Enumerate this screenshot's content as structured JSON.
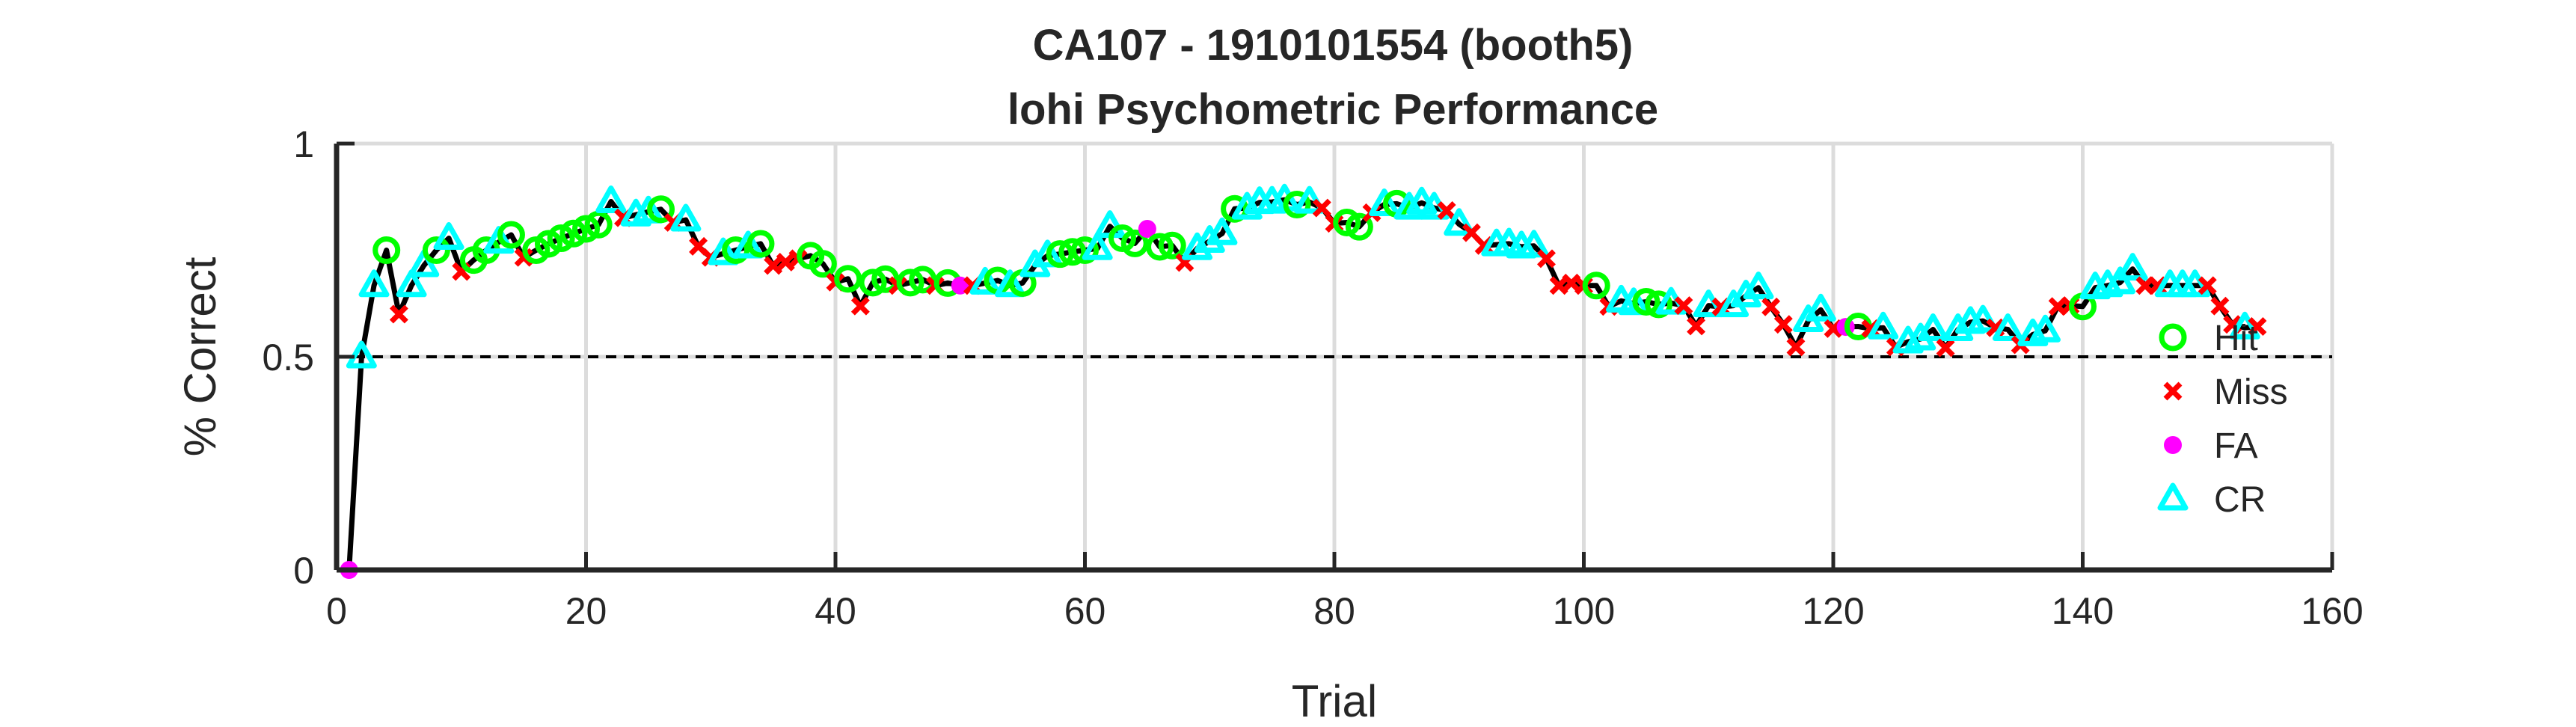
{
  "chart_data": {
    "type": "line",
    "title": "CA107 - 1910101554 (booth5)",
    "subtitle": "lohi Psychometric Performance",
    "xlabel": "Trial",
    "ylabel": "% Correct",
    "xlim": [
      0,
      160
    ],
    "ylim": [
      0,
      1
    ],
    "xticks": [
      0,
      20,
      40,
      60,
      80,
      100,
      120,
      140,
      160
    ],
    "xtick_labels": [
      "0",
      "20",
      "40",
      "60",
      "80",
      "100",
      "120",
      "140",
      "160"
    ],
    "yticks": [
      0,
      0.5,
      1
    ],
    "ytick_labels": [
      "0",
      "0.5",
      "1"
    ],
    "grid": true,
    "chance_line": 0.5,
    "legend_position": "bottom-right",
    "legend": [
      {
        "label": "Hit",
        "marker": "circle-open",
        "color": "#00ff00"
      },
      {
        "label": "Miss",
        "marker": "x",
        "color": "#ff0000"
      },
      {
        "label": "FA",
        "marker": "dot",
        "color": "#ff00ff"
      },
      {
        "label": "CR",
        "marker": "triangle-open",
        "color": "#00ffff"
      }
    ],
    "line_color": "#000000",
    "trials": [
      1,
      2,
      3,
      4,
      5,
      6,
      7,
      8,
      9,
      10,
      11,
      12,
      13,
      14,
      15,
      16,
      17,
      18,
      19,
      20,
      21,
      22,
      23,
      24,
      25,
      26,
      27,
      28,
      29,
      30,
      31,
      32,
      33,
      34,
      35,
      36,
      37,
      38,
      39,
      40,
      41,
      42,
      43,
      44,
      45,
      46,
      47,
      48,
      49,
      50,
      51,
      52,
      53,
      54,
      55,
      56,
      57,
      58,
      59,
      60,
      61,
      62,
      63,
      64,
      65,
      66,
      67,
      68,
      69,
      70,
      71,
      72,
      73,
      74,
      75,
      76,
      77,
      78,
      79,
      80,
      81,
      82,
      83,
      84,
      85,
      86,
      87,
      88,
      89,
      90,
      91,
      92,
      93,
      94,
      95,
      96,
      97,
      98,
      99,
      100,
      101,
      102,
      103,
      104,
      105,
      106,
      107,
      108,
      109,
      110,
      111,
      112,
      113,
      114,
      115,
      116,
      117,
      118,
      119,
      120,
      121,
      122,
      123,
      124,
      125,
      126,
      127,
      128,
      129,
      130,
      131,
      132,
      133,
      134,
      135,
      136,
      137,
      138,
      139,
      140,
      141,
      142,
      143,
      144,
      145,
      146,
      147,
      148,
      149,
      150,
      151,
      152,
      153,
      154
    ],
    "percent_correct": [
      0,
      0.5,
      0.667,
      0.75,
      0.6,
      0.667,
      0.714,
      0.75,
      0.778,
      0.7,
      0.727,
      0.75,
      0.769,
      0.786,
      0.733,
      0.75,
      0.765,
      0.778,
      0.789,
      0.8,
      0.81,
      0.864,
      0.826,
      0.833,
      0.84,
      0.846,
      0.815,
      0.821,
      0.759,
      0.733,
      0.742,
      0.75,
      0.758,
      0.765,
      0.714,
      0.722,
      0.73,
      0.737,
      0.718,
      0.675,
      0.683,
      0.619,
      0.674,
      0.682,
      0.667,
      0.674,
      0.681,
      0.667,
      0.673,
      0.667,
      0.667,
      0.673,
      0.679,
      0.667,
      0.673,
      0.714,
      0.737,
      0.741,
      0.746,
      0.75,
      0.754,
      0.806,
      0.778,
      0.766,
      0.8,
      0.758,
      0.761,
      0.721,
      0.754,
      0.771,
      0.789,
      0.847,
      0.849,
      0.862,
      0.863,
      0.868,
      0.857,
      0.863,
      0.849,
      0.813,
      0.815,
      0.805,
      0.838,
      0.857,
      0.859,
      0.849,
      0.861,
      0.849,
      0.843,
      0.811,
      0.791,
      0.761,
      0.763,
      0.765,
      0.758,
      0.76,
      0.73,
      0.667,
      0.673,
      0.667,
      0.667,
      0.618,
      0.631,
      0.625,
      0.629,
      0.623,
      0.626,
      0.62,
      0.572,
      0.62,
      0.617,
      0.62,
      0.643,
      0.662,
      0.617,
      0.576,
      0.523,
      0.585,
      0.61,
      0.566,
      0.57,
      0.571,
      0.566,
      0.568,
      0.523,
      0.535,
      0.542,
      0.564,
      0.521,
      0.564,
      0.581,
      0.584,
      0.568,
      0.564,
      0.528,
      0.552,
      0.561,
      0.618,
      0.62,
      0.618,
      0.662,
      0.667,
      0.674,
      0.706,
      0.667,
      0.667,
      0.667,
      0.667,
      0.667,
      0.667,
      0.619,
      0.576,
      0.568,
      0.571
    ],
    "outcomes": [
      "FA",
      "CR",
      "CR",
      "Hit",
      "Miss",
      "CR",
      "CR",
      "Hit",
      "CR",
      "Miss",
      "Hit",
      "Hit",
      "CR",
      "Hit",
      "Miss",
      "Hit",
      "Hit",
      "Hit",
      "Hit",
      "Hit",
      "Hit",
      "CR",
      "Miss",
      "CR",
      "CR",
      "Hit",
      "Miss",
      "CR",
      "Miss",
      "Miss",
      "CR",
      "Hit",
      "CR",
      "Hit",
      "Miss",
      "Miss",
      "Miss",
      "Hit",
      "Hit",
      "Miss",
      "Hit",
      "Miss",
      "Hit",
      "Hit",
      "Miss",
      "Hit",
      "Hit",
      "Miss",
      "Hit",
      "FA",
      "Miss",
      "CR",
      "Hit",
      "CR",
      "Hit",
      "CR",
      "CR",
      "Hit",
      "Hit",
      "Hit",
      "CR",
      "CR",
      "Hit",
      "Hit",
      "FA",
      "Hit",
      "Hit",
      "Miss",
      "CR",
      "CR",
      "CR",
      "Hit",
      "CR",
      "CR",
      "CR",
      "CR",
      "Hit",
      "CR",
      "Miss",
      "Miss",
      "Hit",
      "Hit",
      "Miss",
      "CR",
      "Hit",
      "CR",
      "CR",
      "CR",
      "Miss",
      "CR",
      "Miss",
      "Miss",
      "CR",
      "CR",
      "CR",
      "CR",
      "Miss",
      "Miss",
      "Miss",
      "Miss",
      "Hit",
      "Miss",
      "CR",
      "CR",
      "Hit",
      "Hit",
      "CR",
      "Miss",
      "Miss",
      "CR",
      "Miss",
      "CR",
      "CR",
      "CR",
      "Miss",
      "Miss",
      "Miss",
      "CR",
      "CR",
      "Miss",
      "FA",
      "Hit",
      "Miss",
      "CR",
      "Miss",
      "CR",
      "CR",
      "CR",
      "Miss",
      "CR",
      "CR",
      "CR",
      "Miss",
      "CR",
      "Miss",
      "CR",
      "CR",
      "Miss",
      "Miss",
      "Hit",
      "CR",
      "CR",
      "CR",
      "CR",
      "Miss",
      "Miss",
      "CR",
      "CR",
      "CR",
      "Miss",
      "Miss",
      "Miss",
      "CR",
      "Miss"
    ]
  }
}
